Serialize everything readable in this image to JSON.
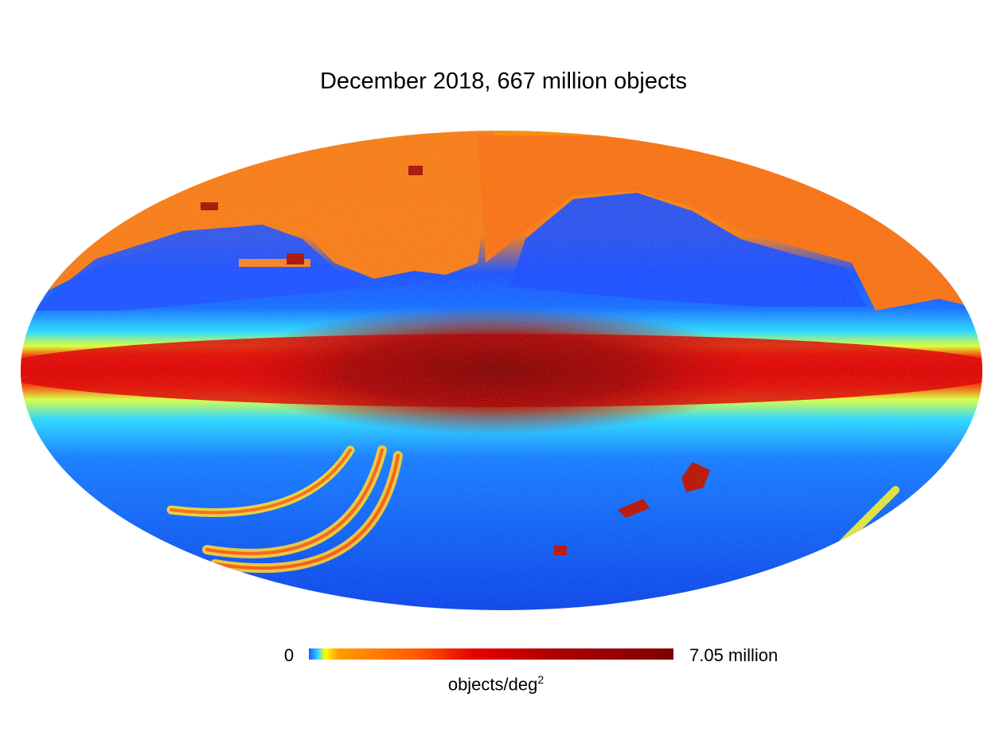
{
  "chart_data": {
    "type": "heatmap",
    "title": "December 2018, 667 million objects",
    "projection": "mollweide",
    "colormap": "jet",
    "colorbar": {
      "min_label": "0",
      "max_label": "7.05 million",
      "unit_base": "objects/deg",
      "unit_exponent": "2",
      "orientation": "horizontal",
      "placement": "bottom"
    },
    "colormap_stops": [
      "#00007f",
      "#0000ff",
      "#007fff",
      "#00ffff",
      "#7fff7f",
      "#ffff00",
      "#ff7f00",
      "#ff0000",
      "#7f0000"
    ],
    "grid": false,
    "legend": "none"
  }
}
